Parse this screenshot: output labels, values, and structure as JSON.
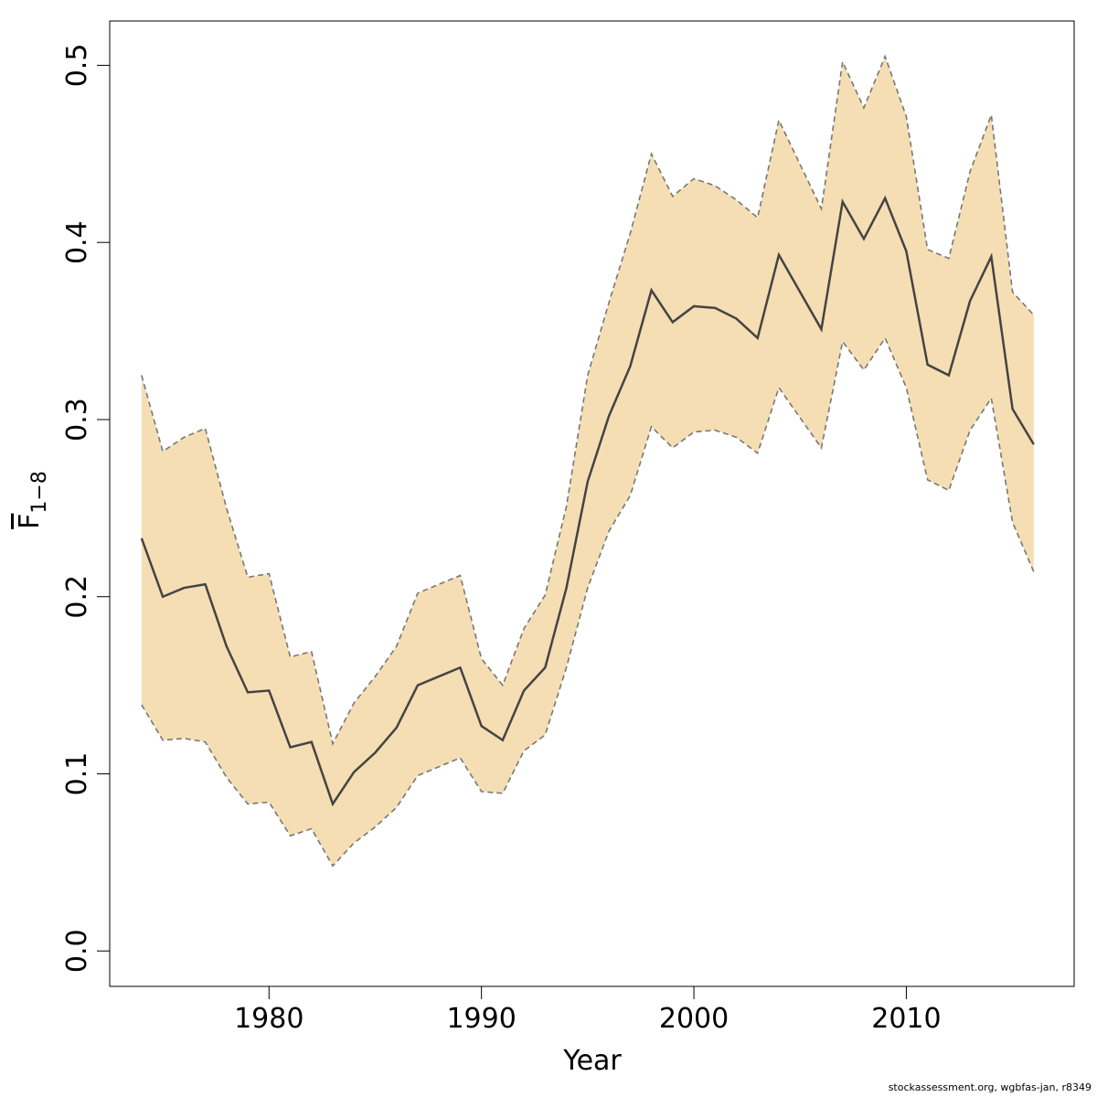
{
  "chart_data": {
    "type": "area",
    "xlabel": "Year",
    "ylabel": "F",
    "ylabel_subscript": "1−8",
    "xlim": [
      1972.5,
      2017.9
    ],
    "ylim": [
      -0.02,
      0.525
    ],
    "x_ticks": [
      1980,
      1990,
      2000,
      2010
    ],
    "y_ticks": [
      0.0,
      0.1,
      0.2,
      0.3,
      0.4,
      0.5
    ],
    "y_tick_labels": [
      "0.0",
      "0.1",
      "0.2",
      "0.3",
      "0.4",
      "0.5"
    ],
    "grid": false,
    "colors": {
      "band": "#f5deb3",
      "line": "#444444",
      "bound": "#777777"
    },
    "x": [
      1974,
      1975,
      1976,
      1977,
      1978,
      1979,
      1980,
      1981,
      1982,
      1983,
      1984,
      1985,
      1986,
      1987,
      1988,
      1989,
      1990,
      1991,
      1992,
      1993,
      1994,
      1995,
      1996,
      1997,
      1998,
      1999,
      2000,
      2001,
      2002,
      2003,
      2004,
      2005,
      2006,
      2007,
      2008,
      2009,
      2010,
      2011,
      2012,
      2013,
      2014,
      2015,
      2016
    ],
    "series": [
      {
        "values": [
          0.233,
          0.2,
          0.205,
          0.207,
          0.172,
          0.146,
          0.147,
          0.115,
          0.118,
          0.083,
          0.101,
          0.112,
          0.126,
          0.15,
          0.155,
          0.16,
          0.127,
          0.119,
          0.147,
          0.16,
          0.205,
          0.265,
          0.302,
          0.33,
          0.373,
          0.355,
          0.364,
          0.363,
          0.357,
          0.346,
          0.393,
          0.372,
          0.351,
          0.423,
          0.402,
          0.425,
          0.395,
          0.331,
          0.325,
          0.367,
          0.392,
          0.306,
          0.286
        ]
      },
      {
        "values": [
          0.325,
          0.282,
          0.29,
          0.295,
          0.25,
          0.211,
          0.213,
          0.166,
          0.169,
          0.117,
          0.14,
          0.155,
          0.172,
          0.202,
          0.207,
          0.212,
          0.165,
          0.15,
          0.182,
          0.201,
          0.251,
          0.325,
          0.366,
          0.405,
          0.45,
          0.426,
          0.436,
          0.432,
          0.424,
          0.414,
          0.469,
          0.444,
          0.419,
          0.502,
          0.476,
          0.505,
          0.471,
          0.396,
          0.391,
          0.44,
          0.472,
          0.372,
          0.359
        ]
      },
      {
        "values": [
          0.139,
          0.119,
          0.12,
          0.118,
          0.098,
          0.083,
          0.084,
          0.065,
          0.069,
          0.048,
          0.061,
          0.07,
          0.081,
          0.099,
          0.104,
          0.109,
          0.09,
          0.089,
          0.113,
          0.122,
          0.16,
          0.205,
          0.237,
          0.257,
          0.296,
          0.284,
          0.293,
          0.294,
          0.29,
          0.281,
          0.318,
          0.301,
          0.284,
          0.344,
          0.328,
          0.346,
          0.318,
          0.266,
          0.26,
          0.294,
          0.312,
          0.242,
          0.214
        ]
      }
    ]
  },
  "footer": {
    "credit": "stockassessment.org, wgbfas-jan, r8349"
  }
}
